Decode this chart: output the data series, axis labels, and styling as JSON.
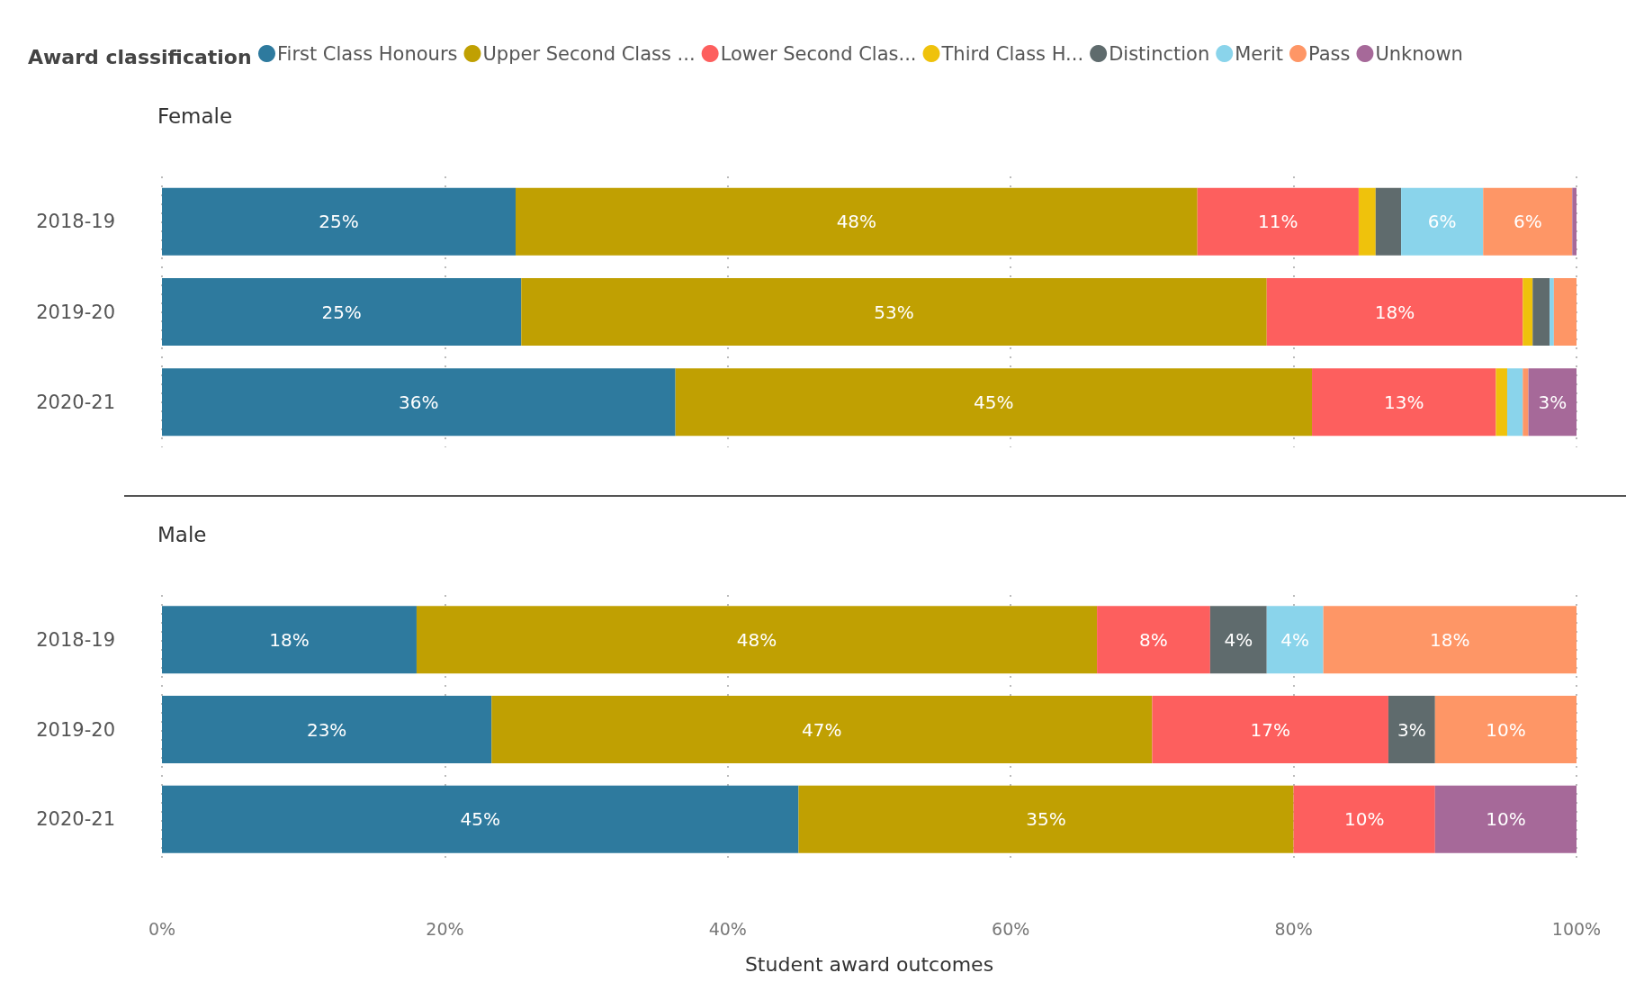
{
  "chart_data": [
    {
      "type": "bar",
      "orientation": "horizontal",
      "stacked": true,
      "title": "Female",
      "legend_title": "Award classification",
      "legend": "top",
      "grid": "x",
      "tick_labels": "y",
      "categories": [
        "2018-19",
        "2019-20",
        "2020-21"
      ],
      "xlim": [
        0,
        100
      ],
      "xticks": [
        {
          "value": 0,
          "label": null
        },
        {
          "value": 20,
          "label": null
        },
        {
          "value": 40,
          "label": null
        },
        {
          "value": 60,
          "label": null
        },
        {
          "value": 80,
          "label": null
        },
        {
          "value": 100,
          "label": null
        }
      ],
      "series": [
        {
          "name": "First Class Honours",
          "color": "#2e7a9e",
          "values": [
            25.0,
            25.4,
            36.3
          ],
          "value_labels": [
            "25%",
            "25%",
            "36%"
          ]
        },
        {
          "name": "Upper Second Class ...",
          "color": "#c0a002",
          "values": [
            48.2,
            52.7,
            45.0
          ],
          "value_labels": [
            "48%",
            "53%",
            "45%"
          ]
        },
        {
          "name": "Lower Second Clas...",
          "color": "#fd5f5e",
          "values": [
            11.4,
            18.1,
            13.0
          ],
          "value_labels": [
            "11%",
            "18%",
            "13%"
          ]
        },
        {
          "name": "Third Class H...",
          "color": "#efc20c",
          "values": [
            1.2,
            0.7,
            0.8
          ],
          "value_labels": [
            null,
            null,
            null
          ]
        },
        {
          "name": "Distinction",
          "color": "#5f6b6d",
          "values": [
            1.8,
            1.2,
            0
          ],
          "value_labels": [
            null,
            null,
            null
          ]
        },
        {
          "name": "Merit",
          "color": "#8ad4eb",
          "values": [
            5.8,
            0.3,
            1.1
          ],
          "value_labels": [
            "6%",
            null,
            null
          ]
        },
        {
          "name": "Pass",
          "color": "#fe9666",
          "values": [
            6.3,
            1.6,
            0.4
          ],
          "value_labels": [
            "6%",
            null,
            null
          ]
        },
        {
          "name": "Unknown",
          "color": "#a66999",
          "values": [
            0.3,
            0,
            3.4
          ],
          "value_labels": [
            null,
            null,
            "3%"
          ]
        }
      ]
    },
    {
      "type": "bar",
      "orientation": "horizontal",
      "stacked": true,
      "title": "Male",
      "xlabel": "Student award outcomes",
      "grid": "x",
      "categories": [
        "2018-19",
        "2019-20",
        "2020-21"
      ],
      "xlim": [
        0,
        100
      ],
      "xticks": [
        {
          "value": 0,
          "label": "0%"
        },
        {
          "value": 20,
          "label": "20%"
        },
        {
          "value": 40,
          "label": "40%"
        },
        {
          "value": 60,
          "label": "60%"
        },
        {
          "value": 80,
          "label": "80%"
        },
        {
          "value": 100,
          "label": "100%"
        }
      ],
      "series": [
        {
          "color": "#2e7a9e",
          "values": [
            18.0,
            23.3,
            45.0
          ],
          "value_labels": [
            "18%",
            "23%",
            "45%"
          ]
        },
        {
          "color": "#c0a002",
          "values": [
            48.1,
            46.7,
            35.0
          ],
          "value_labels": [
            "48%",
            "47%",
            "35%"
          ]
        },
        {
          "color": "#fd5f5e",
          "values": [
            8.0,
            16.7,
            10.0
          ],
          "value_labels": [
            "8%",
            "17%",
            "10%"
          ]
        },
        {
          "color": "#5f6b6d",
          "values": [
            4.0,
            3.3,
            0
          ],
          "value_labels": [
            "4%",
            "3%",
            null
          ]
        },
        {
          "color": "#8ad4eb",
          "values": [
            4.0,
            0,
            0
          ],
          "value_labels": [
            "4%",
            null,
            null
          ]
        },
        {
          "color": "#fe9666",
          "values": [
            17.9,
            10.0,
            0
          ],
          "value_labels": [
            "18%",
            "10%",
            null
          ]
        },
        {
          "color": "#a66999",
          "values": [
            0,
            0,
            10.0
          ],
          "value_labels": [
            null,
            null,
            "10%"
          ]
        }
      ]
    }
  ]
}
